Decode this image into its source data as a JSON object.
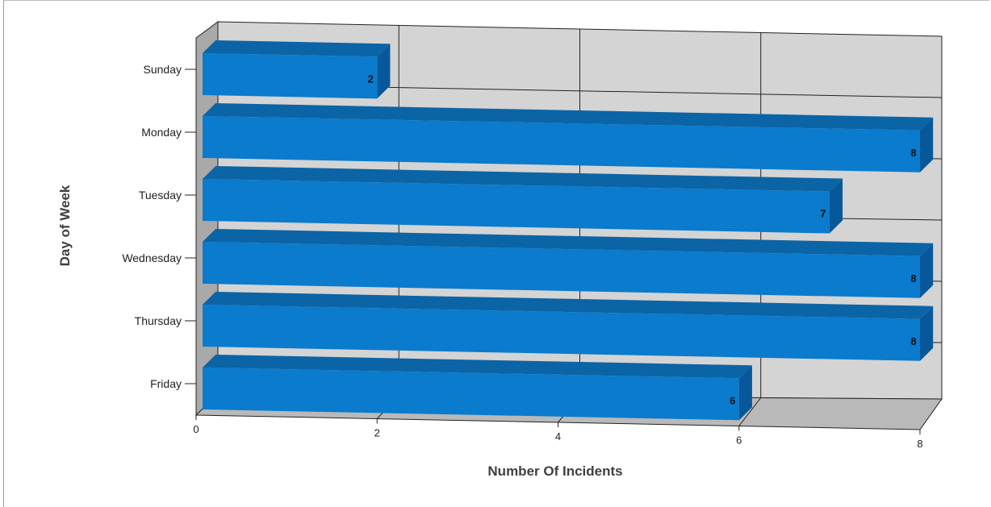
{
  "chart_data": {
    "type": "bar",
    "orientation": "horizontal",
    "style": "3d",
    "categories": [
      "Sunday",
      "Monday",
      "Tuesday",
      "Wednesday",
      "Thursday",
      "Friday"
    ],
    "values": [
      2,
      8,
      7,
      8,
      8,
      6
    ],
    "data_labels": [
      "2",
      "8",
      "7",
      "8",
      "8",
      "6"
    ],
    "xlabel": "Number Of Incidents",
    "ylabel": "Day of Week",
    "xlim": [
      0,
      8
    ],
    "x_ticks": [
      "0",
      "2",
      "4",
      "6",
      "8"
    ],
    "grid": true,
    "legend": "none",
    "colors": {
      "bar_front": "#0a7bcd",
      "bar_top": "#0b64a6",
      "bar_side": "#07589a",
      "back_wall": "#d4d4d4",
      "side_wall": "#a9a9a9",
      "floor": "#b9b9b9"
    }
  }
}
